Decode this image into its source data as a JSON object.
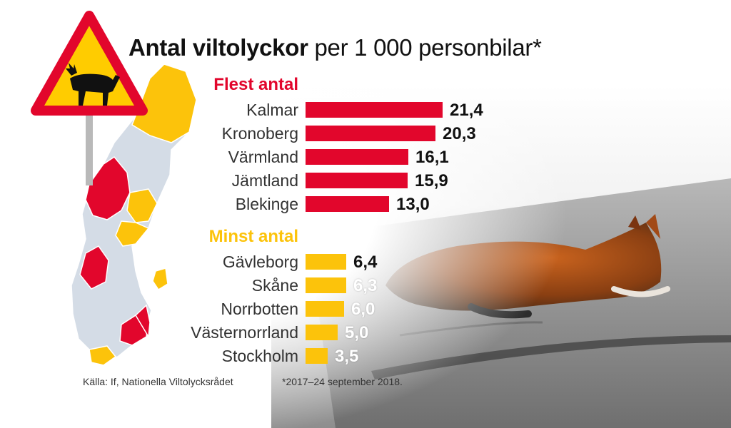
{
  "title_bold": "Antal viltolyckor",
  "title_rest": " per 1 000 personbilar*",
  "sections": [
    {
      "label": "Flest antal",
      "color": "#e2062c",
      "categories": [
        "Kalmar",
        "Kronoberg",
        "Värmland",
        "Jämtland",
        "Blekinge"
      ],
      "values": [
        21.4,
        20.3,
        16.1,
        15.9,
        13.0
      ],
      "value_labels": [
        "21,4",
        "20,3",
        "16,1",
        "15,9",
        "13,0"
      ]
    },
    {
      "label": "Minst antal",
      "color": "#fcc30b",
      "categories": [
        "Gävleborg",
        "Skåne",
        "Norrbotten",
        "Västernorrland",
        "Stockholm"
      ],
      "values": [
        6.4,
        6.3,
        6.0,
        5.0,
        3.5
      ],
      "value_labels": [
        "6,4",
        "6,3",
        "6,0",
        "5,0",
        "3,5"
      ]
    }
  ],
  "chart_data": {
    "type": "bar",
    "title": "Antal viltolyckor per 1 000 personbilar*",
    "xlabel": "",
    "ylabel": "",
    "series": [
      {
        "name": "Flest antal",
        "categories": [
          "Kalmar",
          "Kronoberg",
          "Värmland",
          "Jämtland",
          "Blekinge"
        ],
        "values": [
          21.4,
          20.3,
          16.1,
          15.9,
          13.0
        ]
      },
      {
        "name": "Minst antal",
        "categories": [
          "Gävleborg",
          "Skåne",
          "Norrbotten",
          "Västernorrland",
          "Stockholm"
        ],
        "values": [
          6.4,
          6.3,
          6.0,
          5.0,
          3.5
        ]
      }
    ],
    "orientation": "horizontal",
    "grid": false
  },
  "footer": {
    "source": "Källa: If, Nationella Viltolycksrådet",
    "note": "*2017–24 september 2018."
  },
  "colors": {
    "red": "#e2062c",
    "yellow": "#fcc30b",
    "map_grey": "#d4dce6"
  },
  "icons": [
    "moose-warning-sign-icon",
    "sweden-map",
    "fox-photo"
  ]
}
